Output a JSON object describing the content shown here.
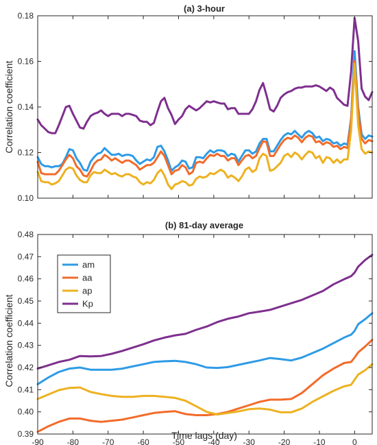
{
  "colors": {
    "am": "#2E9BE6",
    "aa": "#F26B2A",
    "ap": "#EDB120",
    "Kp": "#7E2F8E",
    "axis": "#262626"
  },
  "chart_data": [
    {
      "type": "line",
      "title": "(a) 3-hour",
      "xlabel": "",
      "ylabel": "Correlation coefficient",
      "xlim": [
        -90,
        5
      ],
      "ylim": [
        0.1,
        0.18
      ],
      "xticks": [
        -90,
        -80,
        -70,
        -60,
        -50,
        -40,
        -30,
        -20,
        -10,
        0
      ],
      "xtick_labels": [
        "",
        "",
        "",
        "",
        "",
        "",
        "",
        "",
        "",
        ""
      ],
      "yticks": [
        0.1,
        0.12,
        0.14,
        0.16,
        0.18
      ],
      "ytick_labels": [
        "0.10",
        "0.12",
        "0.14",
        "0.16",
        "0.18"
      ],
      "grid": false,
      "legend": null,
      "x": [
        -90,
        -89,
        -88,
        -87,
        -86,
        -85,
        -84,
        -83,
        -82,
        -81,
        -80,
        -79,
        -78,
        -77,
        -76,
        -75,
        -74,
        -73,
        -72,
        -71,
        -70,
        -69,
        -68,
        -67,
        -66,
        -65,
        -64,
        -63,
        -62,
        -61,
        -60,
        -59,
        -58,
        -57,
        -56,
        -55,
        -54,
        -53,
        -52,
        -51,
        -50,
        -49,
        -48,
        -47,
        -46,
        -45,
        -44,
        -43,
        -42,
        -41,
        -40,
        -39,
        -38,
        -37,
        -36,
        -35,
        -34,
        -33,
        -32,
        -31,
        -30,
        -29,
        -28,
        -27,
        -26,
        -25,
        -24,
        -23,
        -22,
        -21,
        -20,
        -19,
        -18,
        -17,
        -16,
        -15,
        -14,
        -13,
        -12,
        -11,
        -10,
        -9,
        -8,
        -7,
        -6,
        -5,
        -4,
        -3,
        -2,
        -1,
        0,
        1,
        2,
        3,
        4,
        5
      ],
      "series": [
        {
          "name": "am",
          "values": [
            0.118,
            0.115,
            0.114,
            0.114,
            0.1135,
            0.114,
            0.114,
            0.115,
            0.118,
            0.1215,
            0.121,
            0.1175,
            0.1155,
            0.1125,
            0.112,
            0.116,
            0.118,
            0.1195,
            0.12,
            0.122,
            0.1205,
            0.119,
            0.119,
            0.1195,
            0.1185,
            0.119,
            0.119,
            0.1185,
            0.1165,
            0.115,
            0.116,
            0.117,
            0.1165,
            0.118,
            0.1225,
            0.123,
            0.1205,
            0.1165,
            0.112,
            0.1135,
            0.1145,
            0.1165,
            0.116,
            0.113,
            0.1135,
            0.118,
            0.118,
            0.1175,
            0.1195,
            0.121,
            0.12,
            0.121,
            0.121,
            0.1205,
            0.1185,
            0.1195,
            0.119,
            0.116,
            0.1185,
            0.121,
            0.121,
            0.1195,
            0.1205,
            0.124,
            0.126,
            0.126,
            0.1205,
            0.1205,
            0.123,
            0.1255,
            0.1275,
            0.1285,
            0.128,
            0.1295,
            0.128,
            0.1265,
            0.1285,
            0.1295,
            0.1285,
            0.1265,
            0.127,
            0.125,
            0.126,
            0.1255,
            0.124,
            0.1245,
            0.123,
            0.124,
            0.1235,
            0.135,
            0.1645,
            0.14,
            0.128,
            0.126,
            0.1275,
            0.127
          ]
        },
        {
          "name": "aa",
          "values": [
            0.116,
            0.111,
            0.1105,
            0.1105,
            0.1105,
            0.1105,
            0.112,
            0.1145,
            0.117,
            0.119,
            0.1175,
            0.114,
            0.1125,
            0.11,
            0.1095,
            0.112,
            0.115,
            0.1165,
            0.117,
            0.119,
            0.118,
            0.1165,
            0.1175,
            0.1165,
            0.1155,
            0.1165,
            0.1165,
            0.1155,
            0.1145,
            0.1125,
            0.1135,
            0.1145,
            0.1145,
            0.1155,
            0.118,
            0.1205,
            0.1185,
            0.1145,
            0.1105,
            0.112,
            0.1125,
            0.1145,
            0.1135,
            0.1105,
            0.1115,
            0.1155,
            0.116,
            0.1155,
            0.1175,
            0.119,
            0.1185,
            0.1195,
            0.1185,
            0.1185,
            0.1165,
            0.1175,
            0.1175,
            0.1145,
            0.1165,
            0.1185,
            0.119,
            0.1175,
            0.1185,
            0.122,
            0.125,
            0.1245,
            0.1185,
            0.1185,
            0.121,
            0.1235,
            0.1255,
            0.1265,
            0.126,
            0.1275,
            0.1265,
            0.1245,
            0.1265,
            0.1275,
            0.127,
            0.1245,
            0.125,
            0.1235,
            0.1245,
            0.124,
            0.1225,
            0.123,
            0.1215,
            0.1225,
            0.122,
            0.134,
            0.16,
            0.138,
            0.126,
            0.124,
            0.1255,
            0.125
          ]
        },
        {
          "name": "ap",
          "values": [
            0.1115,
            0.1075,
            0.107,
            0.107,
            0.106,
            0.1065,
            0.1075,
            0.11,
            0.1125,
            0.1135,
            0.113,
            0.11,
            0.108,
            0.107,
            0.107,
            0.11,
            0.1115,
            0.111,
            0.111,
            0.1125,
            0.1115,
            0.1105,
            0.111,
            0.11,
            0.1095,
            0.1105,
            0.1105,
            0.1095,
            0.109,
            0.107,
            0.106,
            0.107,
            0.1065,
            0.108,
            0.111,
            0.1125,
            0.11,
            0.106,
            0.104,
            0.106,
            0.1065,
            0.1075,
            0.107,
            0.1055,
            0.106,
            0.1085,
            0.1095,
            0.109,
            0.1095,
            0.111,
            0.1105,
            0.1115,
            0.1125,
            0.1115,
            0.109,
            0.11,
            0.109,
            0.1075,
            0.1095,
            0.1125,
            0.1135,
            0.1115,
            0.1125,
            0.1175,
            0.1195,
            0.1185,
            0.112,
            0.1125,
            0.114,
            0.1155,
            0.1185,
            0.1195,
            0.118,
            0.12,
            0.119,
            0.117,
            0.119,
            0.1205,
            0.12,
            0.1175,
            0.1185,
            0.1155,
            0.118,
            0.1175,
            0.1155,
            0.117,
            0.1155,
            0.117,
            0.117,
            0.1295,
            0.159,
            0.132,
            0.1215,
            0.1195,
            0.1205,
            0.12
          ]
        },
        {
          "name": "Kp",
          "values": [
            0.1345,
            0.132,
            0.1305,
            0.129,
            0.1285,
            0.1285,
            0.132,
            0.136,
            0.14,
            0.1405,
            0.137,
            0.134,
            0.131,
            0.1305,
            0.1335,
            0.136,
            0.137,
            0.1375,
            0.1385,
            0.137,
            0.136,
            0.137,
            0.137,
            0.137,
            0.136,
            0.137,
            0.137,
            0.1365,
            0.136,
            0.134,
            0.1335,
            0.1335,
            0.132,
            0.133,
            0.138,
            0.1425,
            0.144,
            0.1395,
            0.1365,
            0.1325,
            0.1345,
            0.136,
            0.139,
            0.1405,
            0.1395,
            0.1385,
            0.1395,
            0.141,
            0.1425,
            0.142,
            0.1425,
            0.142,
            0.1415,
            0.1415,
            0.139,
            0.1395,
            0.1395,
            0.137,
            0.137,
            0.137,
            0.137,
            0.139,
            0.1425,
            0.1475,
            0.1505,
            0.145,
            0.139,
            0.138,
            0.1405,
            0.144,
            0.1455,
            0.1465,
            0.147,
            0.148,
            0.1485,
            0.1485,
            0.149,
            0.149,
            0.149,
            0.1495,
            0.149,
            0.148,
            0.147,
            0.1485,
            0.1475,
            0.144,
            0.1425,
            0.141,
            0.1405,
            0.1555,
            0.179,
            0.169,
            0.148,
            0.1445,
            0.143,
            0.1465
          ]
        }
      ]
    },
    {
      "type": "line",
      "title": "(b) 81-day average",
      "xlabel": "Time lags (day)",
      "ylabel": "Correlation coefficient",
      "xlim": [
        -90,
        5
      ],
      "ylim": [
        0.39,
        0.48
      ],
      "xticks": [
        -90,
        -80,
        -70,
        -60,
        -50,
        -40,
        -30,
        -20,
        -10,
        0
      ],
      "xtick_labels": [
        "-90",
        "-80",
        "-70",
        "-60",
        "-50",
        "-40",
        "-30",
        "-20",
        "-10",
        "0"
      ],
      "yticks": [
        0.39,
        0.4,
        0.41,
        0.42,
        0.43,
        0.44,
        0.45,
        0.46,
        0.47,
        0.48
      ],
      "ytick_labels": [
        "0.39",
        "0.40",
        "0.41",
        "0.42",
        "0.43",
        "0.44",
        "0.45",
        "0.46",
        "0.47",
        "0.48"
      ],
      "grid": false,
      "legend": {
        "placement": "top-left",
        "entries": [
          "am",
          "aa",
          "ap",
          "Kp"
        ]
      },
      "x": [
        -90,
        -87,
        -84,
        -81,
        -78,
        -75,
        -72,
        -69,
        -66,
        -63,
        -60,
        -57,
        -54,
        -51,
        -48,
        -45,
        -42,
        -39,
        -36,
        -33,
        -30,
        -27,
        -24,
        -21,
        -18,
        -15,
        -12,
        -9,
        -6,
        -3,
        -1,
        0,
        1,
        3,
        5
      ],
      "series": [
        {
          "name": "am",
          "values": [
            0.4125,
            0.4155,
            0.418,
            0.4195,
            0.42,
            0.419,
            0.419,
            0.419,
            0.4195,
            0.4205,
            0.4215,
            0.4225,
            0.4228,
            0.423,
            0.4225,
            0.4215,
            0.42,
            0.4198,
            0.4202,
            0.4212,
            0.4222,
            0.4232,
            0.4243,
            0.4238,
            0.4232,
            0.4245,
            0.4265,
            0.4285,
            0.431,
            0.4335,
            0.4348,
            0.4365,
            0.4395,
            0.4418,
            0.4445
          ]
        },
        {
          "name": "aa",
          "values": [
            0.391,
            0.3935,
            0.3955,
            0.397,
            0.397,
            0.396,
            0.3955,
            0.396,
            0.3965,
            0.3975,
            0.3985,
            0.3995,
            0.4,
            0.4003,
            0.399,
            0.3985,
            0.3985,
            0.399,
            0.4,
            0.4015,
            0.403,
            0.4045,
            0.4055,
            0.4055,
            0.4058,
            0.4085,
            0.4125,
            0.4165,
            0.4195,
            0.422,
            0.4225,
            0.4245,
            0.4268,
            0.4295,
            0.4325
          ]
        },
        {
          "name": "ap",
          "values": [
            0.4058,
            0.4078,
            0.4098,
            0.4108,
            0.411,
            0.409,
            0.408,
            0.4072,
            0.4068,
            0.4068,
            0.4072,
            0.4072,
            0.4068,
            0.4063,
            0.405,
            0.4025,
            0.4,
            0.3988,
            0.3995,
            0.4002,
            0.4012,
            0.4015,
            0.401,
            0.3998,
            0.3998,
            0.4015,
            0.4045,
            0.407,
            0.4095,
            0.4115,
            0.4122,
            0.4145,
            0.4168,
            0.4188,
            0.4215
          ]
        },
        {
          "name": "Kp",
          "values": [
            0.4195,
            0.421,
            0.4225,
            0.4235,
            0.4252,
            0.425,
            0.4252,
            0.4262,
            0.4275,
            0.429,
            0.4305,
            0.4322,
            0.4335,
            0.4345,
            0.4352,
            0.437,
            0.4385,
            0.4405,
            0.442,
            0.443,
            0.4445,
            0.4452,
            0.446,
            0.4475,
            0.449,
            0.4505,
            0.4525,
            0.4545,
            0.4575,
            0.4598,
            0.4612,
            0.4628,
            0.4655,
            0.4685,
            0.4708
          ]
        }
      ]
    }
  ]
}
